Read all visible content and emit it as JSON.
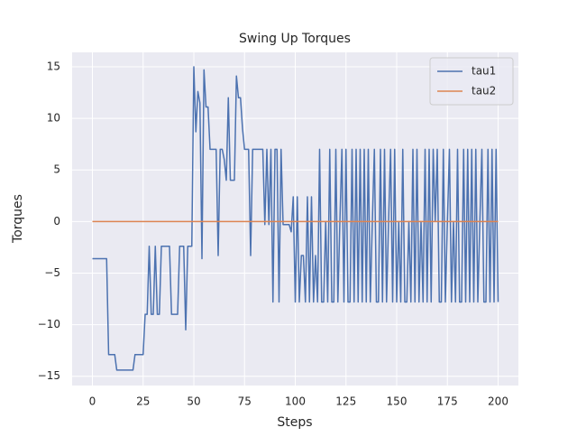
{
  "chart_data": {
    "type": "line",
    "title": "Swing Up Torques",
    "x_label": "Steps",
    "y_label": "Torques",
    "x": [
      0,
      1,
      2,
      3,
      4,
      5,
      6,
      7,
      8,
      9,
      10,
      11,
      12,
      13,
      14,
      15,
      16,
      17,
      18,
      19,
      20,
      21,
      22,
      23,
      24,
      25,
      26,
      27,
      28,
      29,
      30,
      31,
      32,
      33,
      34,
      35,
      36,
      37,
      38,
      39,
      40,
      41,
      42,
      43,
      44,
      45,
      46,
      47,
      48,
      49,
      50,
      51,
      52,
      53,
      54,
      55,
      56,
      57,
      58,
      59,
      60,
      61,
      62,
      63,
      64,
      65,
      66,
      67,
      68,
      69,
      70,
      71,
      72,
      73,
      74,
      75,
      76,
      77,
      78,
      79,
      80,
      81,
      82,
      83,
      84,
      85,
      86,
      87,
      88,
      89,
      90,
      91,
      92,
      93,
      94,
      95,
      96,
      97,
      98,
      99,
      100,
      101,
      102,
      103,
      104,
      105,
      106,
      107,
      108,
      109,
      110,
      111,
      112,
      113,
      114,
      115,
      116,
      117,
      118,
      119,
      120,
      121,
      122,
      123,
      124,
      125,
      126,
      127,
      128,
      129,
      130,
      131,
      132,
      133,
      134,
      135,
      136,
      137,
      138,
      139,
      140,
      141,
      142,
      143,
      144,
      145,
      146,
      147,
      148,
      149,
      150,
      151,
      152,
      153,
      154,
      155,
      156,
      157,
      158,
      159,
      160,
      161,
      162,
      163,
      164,
      165,
      166,
      167,
      168,
      169,
      170,
      171,
      172,
      173,
      174,
      175,
      176,
      177,
      178,
      179,
      180,
      181,
      182,
      183,
      184,
      185,
      186,
      187,
      188,
      189,
      190,
      191,
      192,
      193,
      194,
      195,
      196,
      197,
      198,
      199,
      200
    ],
    "series": [
      {
        "name": "tau1",
        "color": "#4c72b0",
        "values": [
          -3.6,
          -3.6,
          -3.6,
          -3.6,
          -3.6,
          -3.6,
          -3.6,
          -3.6,
          -12.9,
          -12.9,
          -12.9,
          -12.9,
          -14.4,
          -14.4,
          -14.4,
          -14.4,
          -14.4,
          -14.4,
          -14.4,
          -14.4,
          -14.4,
          -12.9,
          -12.9,
          -12.9,
          -12.9,
          -12.9,
          -9,
          -9,
          -2.4,
          -9,
          -9,
          -2.4,
          -9,
          -9,
          -2.4,
          -2.4,
          -2.4,
          -2.4,
          -2.4,
          -9,
          -9,
          -9,
          -9,
          -2.4,
          -2.4,
          -2.4,
          -10.5,
          -2.4,
          -2.4,
          -2.4,
          15,
          8.7,
          12.6,
          11.5,
          -3.6,
          14.7,
          11.1,
          11.1,
          7,
          7,
          7,
          7,
          -3.3,
          7,
          7,
          6,
          4,
          12,
          4,
          4,
          4,
          14.1,
          12,
          12,
          9,
          7,
          7,
          7,
          -3.3,
          7,
          7,
          7,
          7,
          7,
          7,
          -0.3,
          7,
          -0.3,
          7,
          -7.8,
          7,
          7,
          -7.8,
          7,
          -0.3,
          -0.3,
          -0.3,
          -0.3,
          -1,
          2.4,
          -7.8,
          2.4,
          -7.8,
          -3.3,
          -3.3,
          -7.8,
          2.4,
          -7.8,
          2.4,
          -7.8,
          -3.3,
          -7.8,
          7,
          -7.8,
          -7.8,
          0,
          -7.8,
          7,
          -7.8,
          -7.8,
          7,
          -7.8,
          0,
          7,
          -7.8,
          7,
          -7.8,
          -7.8,
          7,
          -7.8,
          7,
          -7.8,
          7,
          -7.8,
          7,
          -7.8,
          7,
          -7.8,
          0,
          7,
          -7.8,
          -7.8,
          7,
          -7.8,
          7,
          -7.8,
          0,
          7,
          -7.8,
          7,
          -7.8,
          0,
          -7.8,
          7,
          -7.8,
          -7.8,
          0,
          -7.8,
          7,
          -7.8,
          7,
          -7.8,
          0,
          -7.8,
          7,
          -7.8,
          7,
          -7.8,
          7,
          0,
          7,
          -7.8,
          -7.8,
          7,
          -7.8,
          0,
          7,
          -7.8,
          0,
          -7.8,
          7,
          -7.8,
          -7.8,
          7,
          -7.8,
          7,
          -7.8,
          7,
          -7.8,
          7,
          -7.8,
          0,
          7,
          -7.8,
          -7.8,
          7,
          -7.8,
          7,
          -7.8,
          7,
          -7.8
        ]
      },
      {
        "name": "tau2",
        "color": "#dd8452",
        "values": [
          0,
          0,
          0,
          0,
          0,
          0,
          0,
          0,
          0,
          0,
          0,
          0,
          0,
          0,
          0,
          0,
          0,
          0,
          0,
          0,
          0,
          0,
          0,
          0,
          0,
          0,
          0,
          0,
          0,
          0,
          0,
          0,
          0,
          0,
          0,
          0,
          0,
          0,
          0,
          0,
          0,
          0,
          0,
          0,
          0,
          0,
          0,
          0,
          0,
          0,
          0,
          0,
          0,
          0,
          0,
          0,
          0,
          0,
          0,
          0,
          0,
          0,
          0,
          0,
          0,
          0,
          0,
          0,
          0,
          0,
          0,
          0,
          0,
          0,
          0,
          0,
          0,
          0,
          0,
          0,
          0,
          0,
          0,
          0,
          0,
          0,
          0,
          0,
          0,
          0,
          0,
          0,
          0,
          0,
          0,
          0,
          0,
          0,
          0,
          0,
          0,
          0,
          0,
          0,
          0,
          0,
          0,
          0,
          0,
          0,
          0,
          0,
          0,
          0,
          0,
          0,
          0,
          0,
          0,
          0,
          0,
          0,
          0,
          0,
          0,
          0,
          0,
          0,
          0,
          0,
          0,
          0,
          0,
          0,
          0,
          0,
          0,
          0,
          0,
          0,
          0,
          0,
          0,
          0,
          0,
          0,
          0,
          0,
          0,
          0,
          0,
          0,
          0,
          0,
          0,
          0,
          0,
          0,
          0,
          0,
          0,
          0,
          0,
          0,
          0,
          0,
          0,
          0,
          0,
          0,
          0,
          0,
          0,
          0,
          0,
          0,
          0,
          0,
          0,
          0,
          0,
          0,
          0,
          0,
          0,
          0,
          0,
          0,
          0,
          0,
          0,
          0,
          0,
          0,
          0,
          0,
          0,
          0,
          0,
          0,
          0
        ]
      }
    ],
    "xlim": [
      -10,
      210
    ],
    "ylim": [
      -15.9,
      16.4
    ],
    "xticks": [
      0,
      25,
      50,
      75,
      100,
      125,
      150,
      175,
      200
    ],
    "yticks": [
      {
        "value": -15,
        "label": "−15"
      },
      {
        "value": -10,
        "label": "−10"
      },
      {
        "value": -5,
        "label": "−5"
      },
      0,
      5,
      10,
      15
    ],
    "grid": true,
    "legend": "upper right"
  }
}
